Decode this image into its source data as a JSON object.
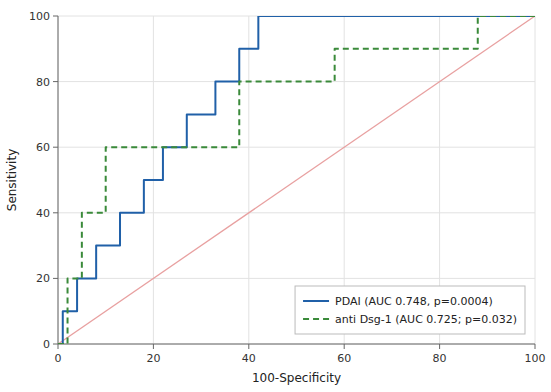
{
  "chart_data": {
    "type": "line",
    "xlabel": "100-Specificity",
    "ylabel": "Sensitivity",
    "xlim": [
      0,
      100
    ],
    "ylim": [
      0,
      100
    ],
    "xticks": [
      0,
      20,
      40,
      60,
      80,
      100
    ],
    "yticks": [
      0,
      20,
      40,
      60,
      80,
      100
    ],
    "grid": true,
    "legend": "lower right",
    "series": [
      {
        "color": "#e8a0a0",
        "line_style": "solid",
        "x": [
          0,
          100
        ],
        "values": [
          0,
          100
        ]
      },
      {
        "name": "PDAI (AUC 0.748, p=0.0004)",
        "color": "#2060a8",
        "line_style": "solid",
        "x": [
          0,
          1,
          1,
          4,
          4,
          8,
          8,
          13,
          13,
          18,
          18,
          22,
          22,
          27,
          27,
          33,
          33,
          38,
          38,
          42,
          42,
          44,
          44,
          100
        ],
        "values": [
          0,
          0,
          10,
          10,
          20,
          20,
          30,
          30,
          40,
          40,
          50,
          50,
          60,
          60,
          70,
          70,
          80,
          80,
          90,
          90,
          100,
          100,
          100,
          100
        ]
      },
      {
        "name": "anti Dsg-1 (AUC 0.725; p=0.032)",
        "color": "#3a8a3a",
        "line_style": "dashed",
        "x": [
          0,
          2,
          2,
          5,
          5,
          10,
          10,
          38,
          38,
          58,
          58,
          88,
          88,
          93,
          93,
          100
        ],
        "values": [
          0,
          0,
          20,
          20,
          40,
          40,
          60,
          60,
          80,
          80,
          90,
          90,
          100,
          100,
          100,
          100
        ]
      }
    ]
  }
}
